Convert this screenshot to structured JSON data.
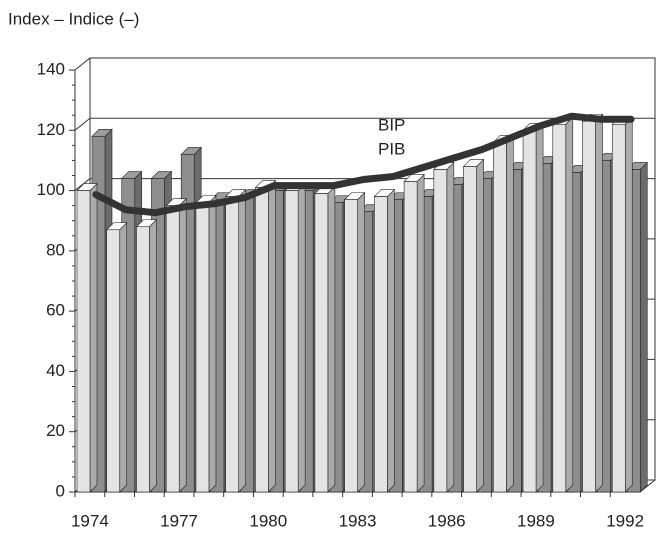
{
  "chart_data": {
    "type": "bar3d",
    "title": "Index – Indice (–)",
    "categories": [
      1974,
      null,
      null,
      1977,
      null,
      null,
      1980,
      null,
      null,
      1983,
      null,
      null,
      1986,
      null,
      null,
      1989,
      null,
      null,
      1992
    ],
    "series": [
      {
        "color": "#e4e4e4",
        "values": [
          100,
          87,
          88,
          95,
          96,
          98,
          101,
          100,
          99,
          97,
          98,
          103,
          107,
          108,
          116,
          120,
          122,
          123,
          122
        ]
      },
      {
        "color": "#8e8e8e",
        "values": [
          118,
          104,
          104,
          112,
          97,
          98,
          100,
          100,
          96,
          93,
          97,
          98,
          102,
          104,
          107,
          109,
          106,
          110,
          107
        ]
      }
    ],
    "line": {
      "color": "#333333",
      "values": [
        97,
        92,
        91,
        93,
        94,
        96,
        100,
        100,
        100,
        102,
        103,
        106,
        109,
        112,
        116,
        120,
        123,
        122,
        122
      ]
    },
    "annotations": [
      "BIP",
      "PIB"
    ],
    "ylim": [
      0,
      140
    ],
    "yticks": [
      0,
      20,
      40,
      60,
      80,
      100,
      120,
      140
    ],
    "grid": true
  }
}
